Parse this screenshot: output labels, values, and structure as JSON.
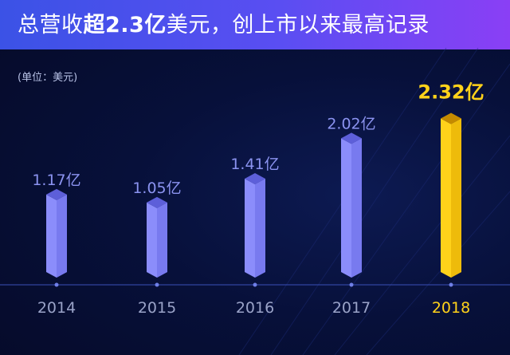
{
  "title": {
    "prefix": "总营收",
    "highlight": "超2.3亿",
    "suffix": "美元，创上市以来最高记录"
  },
  "unit_label": "(单位：美元)",
  "colors": {
    "bar_normal": "#8b8dfb",
    "bar_normal_top": "#5d5fd9",
    "bar_normal_side": "#6a6ce6",
    "bar_highlight": "#ffd21a",
    "bar_highlight_top": "#c48a00",
    "bar_highlight_side": "#e0a800",
    "label_normal": "#8b93f0",
    "label_highlight": "#ffd21a",
    "axis_label": "#9aa3c8"
  },
  "chart_data": {
    "type": "bar",
    "categories": [
      "2014",
      "2015",
      "2016",
      "2017",
      "2018"
    ],
    "values": [
      1.17,
      1.05,
      1.41,
      2.02,
      2.32
    ],
    "value_labels": [
      "1.17亿",
      "1.05亿",
      "1.41亿",
      "2.02亿",
      "2.32亿"
    ],
    "highlight_index": 4,
    "ylabel": "",
    "xlabel": "",
    "grid": false
  }
}
